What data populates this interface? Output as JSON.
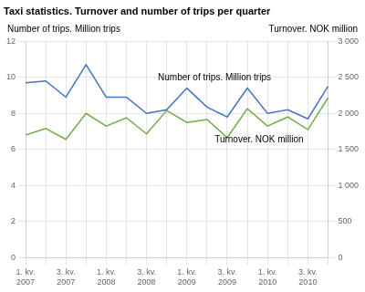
{
  "chart_data": {
    "type": "line",
    "title": "Taxi statistics. Turnover and number of trips per quarter",
    "y_label": "Number of trips. Million trips",
    "y2_label": "Turnover. NOK million",
    "annotations": [
      "Number of trips. Million trips",
      "Turnover. NOK million"
    ],
    "categories": [
      "1. kv.\n2007",
      null,
      "3. kv.\n2007",
      null,
      "1. kv.\n2008",
      null,
      "3. kv.\n2008",
      null,
      "1. kv.\n2009",
      null,
      "3. kv.\n2009",
      null,
      "1. kv.\n2010",
      null,
      "3. kv.\n2010",
      null
    ],
    "series": [
      {
        "name": "Number of trips. Million trips",
        "color": "#4472c4",
        "values": [
          9.7,
          9.8,
          8.9,
          10.7,
          8.9,
          8.9,
          8.0,
          8.2,
          9.4,
          8.35,
          7.8,
          9.4,
          8.0,
          8.2,
          7.7,
          9.5
        ]
      },
      {
        "name": "Turnover. NOK million",
        "color": "#70ad47",
        "axis": "y2",
        "values": [
          1700,
          1790,
          1640,
          2000,
          1825,
          1940,
          1715,
          2040,
          1875,
          1915,
          1665,
          2065,
          1825,
          1950,
          1775,
          2215
        ]
      }
    ],
    "ylim": [
      0,
      12
    ],
    "yticks": [
      0,
      2,
      4,
      6,
      8,
      10,
      12
    ],
    "y2lim": [
      0,
      3000
    ],
    "y2ticks": [
      0,
      500,
      {
        "value": 1000,
        "label": "1 000"
      },
      {
        "value": 1500,
        "label": "1 500"
      },
      {
        "value": 2000,
        "label": "2 000"
      },
      {
        "value": 2500,
        "label": "2 500"
      },
      {
        "value": 3000,
        "label": "3 000"
      }
    ],
    "grid": true
  }
}
